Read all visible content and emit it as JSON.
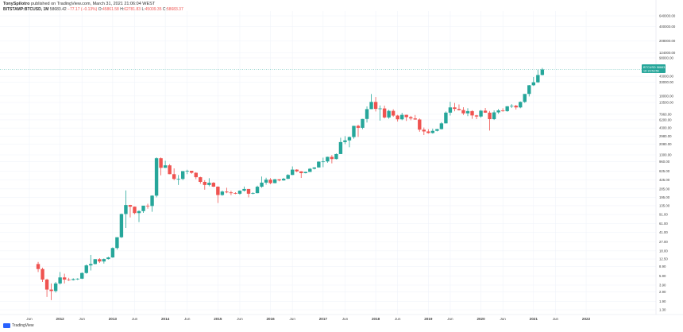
{
  "header": {
    "line1": {
      "author": "TonySpilotro",
      "text": " published on TradingView.com, March 31, 2021 21:06:04 WEST"
    },
    "line2": {
      "symbol": "BITSTAMP:BTCUSD, 1M",
      "price": "58683.42",
      "change": "−77.17 (−0.13%)",
      "o_label": "O:",
      "o_val": "45861.58",
      "h_label": "H:",
      "h_val": "62781.83",
      "l_label": "L:",
      "l_val": "45009.35",
      "c_label": "C:",
      "c_val": "58683.37"
    }
  },
  "colors": {
    "up": "#26a69a",
    "down": "#ef5350",
    "grid": "#f0f3fa",
    "badge": "#26a69a"
  },
  "price_badge": {
    "line1": "BTCUSD",
    "line2": "58683.37",
    "line3": "1D 23:53:56"
  },
  "branding": {
    "text": "TradingView",
    "icon": "tradingview-logo-icon"
  },
  "chart_data": {
    "type": "candlestick",
    "title": "",
    "scale": "log",
    "ylim": [
      1.0,
      1000000
    ],
    "y_ticks": [
      "640000.00",
      "400000.00",
      "208000.00",
      "124000.00",
      "98000.00",
      "43000.00",
      "33000.00",
      "18000.00",
      "13500.00",
      "7960.00",
      "6200.00",
      "4300.00",
      "2980.00",
      "2080.00",
      "1300.00",
      "960.00",
      "625.00",
      "425.00",
      "285.00",
      "195.00",
      "135.00",
      "91.00",
      "61.00",
      "41.00",
      "27.00",
      "18.00",
      "12.50",
      "8.90",
      "5.90",
      "3.90",
      "2.90",
      "1.90",
      "1.30"
    ],
    "x_ticks": [
      {
        "label": "Jun",
        "date": "2011-06",
        "year": false
      },
      {
        "label": "2012",
        "date": "2012-01",
        "year": true
      },
      {
        "label": "Jun",
        "date": "2012-06",
        "year": false
      },
      {
        "label": "2013",
        "date": "2013-01",
        "year": true
      },
      {
        "label": "Jun",
        "date": "2013-06",
        "year": false
      },
      {
        "label": "2014",
        "date": "2014-01",
        "year": true
      },
      {
        "label": "Jun",
        "date": "2014-06",
        "year": false
      },
      {
        "label": "2015",
        "date": "2015-01",
        "year": true
      },
      {
        "label": "Jun",
        "date": "2015-06",
        "year": false
      },
      {
        "label": "2016",
        "date": "2016-01",
        "year": true
      },
      {
        "label": "Jun",
        "date": "2016-06",
        "year": false
      },
      {
        "label": "2017",
        "date": "2017-01",
        "year": true
      },
      {
        "label": "Jun",
        "date": "2017-06",
        "year": false
      },
      {
        "label": "2018",
        "date": "2018-01",
        "year": true
      },
      {
        "label": "Jun",
        "date": "2018-06",
        "year": false
      },
      {
        "label": "2019",
        "date": "2019-01",
        "year": true
      },
      {
        "label": "Jun",
        "date": "2019-06",
        "year": false
      },
      {
        "label": "2020",
        "date": "2020-01",
        "year": true
      },
      {
        "label": "Jun",
        "date": "2020-06",
        "year": false
      },
      {
        "label": "2021",
        "date": "2021-01",
        "year": true
      },
      {
        "label": "Jun",
        "date": "2021-06",
        "year": false
      },
      {
        "label": "2022",
        "date": "2022-01",
        "year": true
      }
    ],
    "candles": [
      {
        "date": "2011-08",
        "o": 10,
        "h": 11,
        "l": 7,
        "c": 8
      },
      {
        "date": "2011-09",
        "o": 8,
        "h": 8.5,
        "l": 4.5,
        "c": 5
      },
      {
        "date": "2011-10",
        "o": 5,
        "h": 5.2,
        "l": 2.3,
        "c": 3.2
      },
      {
        "date": "2011-11",
        "o": 3.2,
        "h": 4.2,
        "l": 2,
        "c": 3
      },
      {
        "date": "2011-12",
        "o": 3,
        "h": 4.5,
        "l": 2.8,
        "c": 4.2
      },
      {
        "date": "2012-01",
        "o": 4.2,
        "h": 7,
        "l": 4,
        "c": 5.5
      },
      {
        "date": "2012-02",
        "o": 5.5,
        "h": 6.5,
        "l": 4.2,
        "c": 5
      },
      {
        "date": "2012-03",
        "o": 5,
        "h": 5.4,
        "l": 4.7,
        "c": 4.9
      },
      {
        "date": "2012-04",
        "o": 4.9,
        "h": 5.3,
        "l": 4.8,
        "c": 5.1
      },
      {
        "date": "2012-05",
        "o": 5.1,
        "h": 5.3,
        "l": 4.9,
        "c": 5.2
      },
      {
        "date": "2012-06",
        "o": 5.2,
        "h": 6.9,
        "l": 5.1,
        "c": 6.7
      },
      {
        "date": "2012-07",
        "o": 6.7,
        "h": 9.8,
        "l": 6.5,
        "c": 9.4
      },
      {
        "date": "2012-08",
        "o": 9.4,
        "h": 15,
        "l": 7.5,
        "c": 10
      },
      {
        "date": "2012-09",
        "o": 10,
        "h": 12.5,
        "l": 9.8,
        "c": 12.4
      },
      {
        "date": "2012-10",
        "o": 12.4,
        "h": 13,
        "l": 10.5,
        "c": 11.2
      },
      {
        "date": "2012-11",
        "o": 11.2,
        "h": 12.8,
        "l": 10.2,
        "c": 12.5
      },
      {
        "date": "2012-12",
        "o": 12.5,
        "h": 13.8,
        "l": 12.2,
        "c": 13.4
      },
      {
        "date": "2013-01",
        "o": 13.4,
        "h": 21,
        "l": 13.2,
        "c": 20.4
      },
      {
        "date": "2013-02",
        "o": 20.4,
        "h": 33,
        "l": 19,
        "c": 33
      },
      {
        "date": "2013-03",
        "o": 33,
        "h": 95,
        "l": 32,
        "c": 93
      },
      {
        "date": "2013-04",
        "o": 93,
        "h": 266,
        "l": 50,
        "c": 139
      },
      {
        "date": "2013-05",
        "o": 139,
        "h": 140,
        "l": 80,
        "c": 129
      },
      {
        "date": "2013-06",
        "o": 129,
        "h": 130,
        "l": 92,
        "c": 97
      },
      {
        "date": "2013-07",
        "o": 97,
        "h": 110,
        "l": 65,
        "c": 106
      },
      {
        "date": "2013-08",
        "o": 106,
        "h": 130,
        "l": 98,
        "c": 135
      },
      {
        "date": "2013-09",
        "o": 135,
        "h": 147,
        "l": 118,
        "c": 133
      },
      {
        "date": "2013-10",
        "o": 133,
        "h": 214,
        "l": 103,
        "c": 211
      },
      {
        "date": "2013-11",
        "o": 211,
        "h": 1163,
        "l": 195,
        "c": 1120
      },
      {
        "date": "2013-12",
        "o": 1120,
        "h": 1160,
        "l": 522,
        "c": 730
      },
      {
        "date": "2014-01",
        "o": 730,
        "h": 1000,
        "l": 730,
        "c": 815
      },
      {
        "date": "2014-02",
        "o": 815,
        "h": 860,
        "l": 550,
        "c": 550
      },
      {
        "date": "2014-03",
        "o": 550,
        "h": 712,
        "l": 420,
        "c": 445
      },
      {
        "date": "2014-04",
        "o": 445,
        "h": 530,
        "l": 340,
        "c": 445
      },
      {
        "date": "2014-05",
        "o": 445,
        "h": 630,
        "l": 420,
        "c": 630
      },
      {
        "date": "2014-06",
        "o": 630,
        "h": 670,
        "l": 550,
        "c": 640
      },
      {
        "date": "2014-07",
        "o": 640,
        "h": 640,
        "l": 560,
        "c": 585
      },
      {
        "date": "2014-08",
        "o": 585,
        "h": 600,
        "l": 440,
        "c": 480
      },
      {
        "date": "2014-09",
        "o": 480,
        "h": 490,
        "l": 360,
        "c": 390
      },
      {
        "date": "2014-10",
        "o": 390,
        "h": 420,
        "l": 275,
        "c": 340
      },
      {
        "date": "2014-11",
        "o": 340,
        "h": 460,
        "l": 320,
        "c": 375
      },
      {
        "date": "2014-12",
        "o": 375,
        "h": 385,
        "l": 310,
        "c": 315
      },
      {
        "date": "2015-01",
        "o": 315,
        "h": 320,
        "l": 152,
        "c": 217
      },
      {
        "date": "2015-02",
        "o": 217,
        "h": 265,
        "l": 210,
        "c": 253
      },
      {
        "date": "2015-03",
        "o": 253,
        "h": 300,
        "l": 235,
        "c": 244
      },
      {
        "date": "2015-04",
        "o": 244,
        "h": 262,
        "l": 215,
        "c": 236
      },
      {
        "date": "2015-05",
        "o": 236,
        "h": 246,
        "l": 225,
        "c": 230
      },
      {
        "date": "2015-06",
        "o": 230,
        "h": 267,
        "l": 220,
        "c": 263
      },
      {
        "date": "2015-07",
        "o": 263,
        "h": 317,
        "l": 254,
        "c": 284
      },
      {
        "date": "2015-08",
        "o": 284,
        "h": 285,
        "l": 195,
        "c": 230
      },
      {
        "date": "2015-09",
        "o": 230,
        "h": 245,
        "l": 225,
        "c": 236
      },
      {
        "date": "2015-10",
        "o": 236,
        "h": 330,
        "l": 234,
        "c": 314
      },
      {
        "date": "2015-11",
        "o": 314,
        "h": 495,
        "l": 300,
        "c": 377
      },
      {
        "date": "2015-12",
        "o": 377,
        "h": 470,
        "l": 345,
        "c": 430
      },
      {
        "date": "2016-01",
        "o": 430,
        "h": 462,
        "l": 350,
        "c": 369
      },
      {
        "date": "2016-02",
        "o": 369,
        "h": 445,
        "l": 365,
        "c": 437
      },
      {
        "date": "2016-03",
        "o": 437,
        "h": 440,
        "l": 400,
        "c": 416
      },
      {
        "date": "2016-04",
        "o": 416,
        "h": 467,
        "l": 411,
        "c": 448
      },
      {
        "date": "2016-05",
        "o": 448,
        "h": 550,
        "l": 442,
        "c": 531
      },
      {
        "date": "2016-06",
        "o": 531,
        "h": 778,
        "l": 530,
        "c": 673
      },
      {
        "date": "2016-07",
        "o": 673,
        "h": 685,
        "l": 600,
        "c": 624
      },
      {
        "date": "2016-08",
        "o": 624,
        "h": 626,
        "l": 465,
        "c": 575
      },
      {
        "date": "2016-09",
        "o": 575,
        "h": 612,
        "l": 570,
        "c": 608
      },
      {
        "date": "2016-10",
        "o": 608,
        "h": 720,
        "l": 606,
        "c": 700
      },
      {
        "date": "2016-11",
        "o": 700,
        "h": 750,
        "l": 680,
        "c": 742
      },
      {
        "date": "2016-12",
        "o": 742,
        "h": 970,
        "l": 740,
        "c": 963
      },
      {
        "date": "2017-01",
        "o": 963,
        "h": 1150,
        "l": 750,
        "c": 970
      },
      {
        "date": "2017-02",
        "o": 970,
        "h": 1200,
        "l": 915,
        "c": 1190
      },
      {
        "date": "2017-03",
        "o": 1190,
        "h": 1290,
        "l": 890,
        "c": 1080
      },
      {
        "date": "2017-04",
        "o": 1080,
        "h": 1380,
        "l": 1060,
        "c": 1350
      },
      {
        "date": "2017-05",
        "o": 1350,
        "h": 2800,
        "l": 1350,
        "c": 2300
      },
      {
        "date": "2017-06",
        "o": 2300,
        "h": 3000,
        "l": 2100,
        "c": 2480
      },
      {
        "date": "2017-07",
        "o": 2480,
        "h": 2950,
        "l": 1830,
        "c": 2880
      },
      {
        "date": "2017-08",
        "o": 2880,
        "h": 4750,
        "l": 2680,
        "c": 4740
      },
      {
        "date": "2017-09",
        "o": 4740,
        "h": 5000,
        "l": 2900,
        "c": 4350
      },
      {
        "date": "2017-10",
        "o": 4350,
        "h": 6450,
        "l": 4100,
        "c": 6450
      },
      {
        "date": "2017-11",
        "o": 6450,
        "h": 11300,
        "l": 5500,
        "c": 10000
      },
      {
        "date": "2017-12",
        "o": 10000,
        "h": 19660,
        "l": 10000,
        "c": 13800
      },
      {
        "date": "2018-01",
        "o": 13800,
        "h": 17200,
        "l": 9000,
        "c": 10100
      },
      {
        "date": "2018-02",
        "o": 10100,
        "h": 11800,
        "l": 6000,
        "c": 10300
      },
      {
        "date": "2018-03",
        "o": 10300,
        "h": 11700,
        "l": 6600,
        "c": 6900
      },
      {
        "date": "2018-04",
        "o": 6900,
        "h": 9750,
        "l": 6500,
        "c": 9250
      },
      {
        "date": "2018-05",
        "o": 9250,
        "h": 9950,
        "l": 7100,
        "c": 7500
      },
      {
        "date": "2018-06",
        "o": 7500,
        "h": 7750,
        "l": 5750,
        "c": 6350
      },
      {
        "date": "2018-07",
        "o": 6350,
        "h": 8500,
        "l": 6100,
        "c": 7750
      },
      {
        "date": "2018-08",
        "o": 7750,
        "h": 7800,
        "l": 5900,
        "c": 7000
      },
      {
        "date": "2018-09",
        "o": 7000,
        "h": 7400,
        "l": 6100,
        "c": 6600
      },
      {
        "date": "2018-10",
        "o": 6600,
        "h": 7700,
        "l": 6200,
        "c": 6300
      },
      {
        "date": "2018-11",
        "o": 6300,
        "h": 6600,
        "l": 3650,
        "c": 4000
      },
      {
        "date": "2018-12",
        "o": 4000,
        "h": 4400,
        "l": 3150,
        "c": 3700
      },
      {
        "date": "2019-01",
        "o": 3700,
        "h": 4100,
        "l": 3350,
        "c": 3450
      },
      {
        "date": "2019-02",
        "o": 3450,
        "h": 4200,
        "l": 3350,
        "c": 3800
      },
      {
        "date": "2019-03",
        "o": 3800,
        "h": 4150,
        "l": 3700,
        "c": 4100
      },
      {
        "date": "2019-04",
        "o": 4100,
        "h": 5600,
        "l": 4050,
        "c": 5300
      },
      {
        "date": "2019-05",
        "o": 5300,
        "h": 9000,
        "l": 5300,
        "c": 8550
      },
      {
        "date": "2019-06",
        "o": 8550,
        "h": 13880,
        "l": 7500,
        "c": 10800
      },
      {
        "date": "2019-07",
        "o": 10800,
        "h": 13200,
        "l": 9100,
        "c": 10100
      },
      {
        "date": "2019-08",
        "o": 10100,
        "h": 12300,
        "l": 9400,
        "c": 9600
      },
      {
        "date": "2019-09",
        "o": 9600,
        "h": 10900,
        "l": 7700,
        "c": 8300
      },
      {
        "date": "2019-10",
        "o": 8300,
        "h": 10400,
        "l": 7300,
        "c": 9150
      },
      {
        "date": "2019-11",
        "o": 9150,
        "h": 9500,
        "l": 6500,
        "c": 7550
      },
      {
        "date": "2019-12",
        "o": 7550,
        "h": 7750,
        "l": 6400,
        "c": 7200
      },
      {
        "date": "2020-01",
        "o": 7200,
        "h": 9600,
        "l": 6850,
        "c": 9350
      },
      {
        "date": "2020-02",
        "o": 9350,
        "h": 10500,
        "l": 8450,
        "c": 8550
      },
      {
        "date": "2020-03",
        "o": 8550,
        "h": 9200,
        "l": 3850,
        "c": 6400
      },
      {
        "date": "2020-04",
        "o": 6400,
        "h": 9450,
        "l": 6150,
        "c": 8650
      },
      {
        "date": "2020-05",
        "o": 8650,
        "h": 10050,
        "l": 8150,
        "c": 9450
      },
      {
        "date": "2020-06",
        "o": 9450,
        "h": 10400,
        "l": 8900,
        "c": 9150
      },
      {
        "date": "2020-07",
        "o": 9150,
        "h": 11450,
        "l": 8900,
        "c": 11350
      },
      {
        "date": "2020-08",
        "o": 11350,
        "h": 12500,
        "l": 10500,
        "c": 11650
      },
      {
        "date": "2020-09",
        "o": 11650,
        "h": 12100,
        "l": 9850,
        "c": 10800
      },
      {
        "date": "2020-10",
        "o": 10800,
        "h": 14100,
        "l": 10400,
        "c": 13800
      },
      {
        "date": "2020-11",
        "o": 13800,
        "h": 19500,
        "l": 13200,
        "c": 19700
      },
      {
        "date": "2020-12",
        "o": 19700,
        "h": 29300,
        "l": 17600,
        "c": 29000
      },
      {
        "date": "2021-01",
        "o": 29000,
        "h": 41950,
        "l": 28100,
        "c": 33100
      },
      {
        "date": "2021-02",
        "o": 33100,
        "h": 58350,
        "l": 32300,
        "c": 45800
      },
      {
        "date": "2021-03",
        "o": 45861.58,
        "h": 62781.83,
        "l": 45009.35,
        "c": 58683.37
      }
    ]
  }
}
